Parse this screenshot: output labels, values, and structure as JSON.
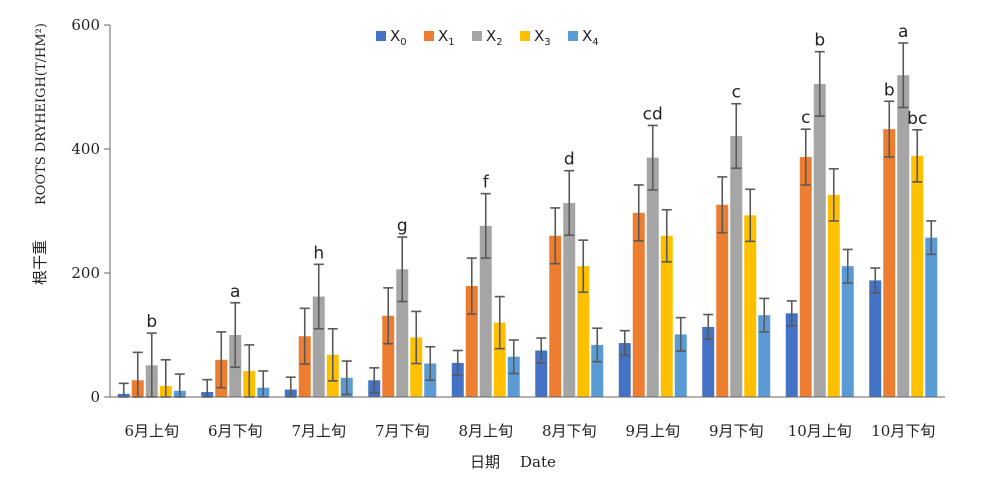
{
  "chart_data": {
    "type": "bar",
    "xlabel_cn": "日期",
    "xlabel_en": "Date",
    "ylabel_cn": "根干重",
    "ylabel_en": "ROOTS DRYHEIGH(T/HM²)",
    "ylim": [
      0,
      600
    ],
    "yticks": [
      0,
      200,
      400,
      600
    ],
    "categories": [
      "6月上旬",
      "6月下旬",
      "7月上旬",
      "7月下旬",
      "8月上旬",
      "8月下旬",
      "9月上旬",
      "9月下旬",
      "10月上旬",
      "10月下旬"
    ],
    "series": [
      {
        "name": "X",
        "sub": "0",
        "color": "#4472c4",
        "values": [
          5,
          8,
          12,
          27,
          55,
          75,
          87,
          113,
          135,
          188
        ],
        "errors": [
          17,
          20,
          20,
          20,
          20,
          20,
          20,
          20,
          20,
          20
        ],
        "sig": [
          "",
          "",
          "",
          "",
          "",
          "",
          "",
          "",
          "",
          ""
        ]
      },
      {
        "name": "X",
        "sub": "1",
        "color": "#ed7d31",
        "values": [
          27,
          60,
          98,
          131,
          179,
          260,
          297,
          310,
          387,
          432
        ],
        "errors": [
          45,
          45,
          45,
          45,
          45,
          45,
          45,
          45,
          45,
          45
        ],
        "sig": [
          "",
          "",
          "",
          "",
          "",
          "",
          "",
          "",
          "c",
          "b"
        ]
      },
      {
        "name": "X",
        "sub": "2",
        "color": "#a5a5a5",
        "values": [
          51,
          100,
          162,
          206,
          276,
          313,
          386,
          421,
          505,
          519
        ],
        "errors": [
          52,
          52,
          52,
          52,
          52,
          52,
          52,
          52,
          52,
          52
        ],
        "sig": [
          "b",
          "a",
          "h",
          "g",
          "f",
          "d",
          "cd",
          "c",
          "b",
          "a"
        ]
      },
      {
        "name": "X",
        "sub": "3",
        "color": "#ffc000",
        "values": [
          18,
          42,
          68,
          96,
          120,
          211,
          260,
          293,
          326,
          389
        ],
        "errors": [
          42,
          42,
          42,
          42,
          42,
          42,
          42,
          42,
          42,
          42
        ],
        "sig": [
          "",
          "",
          "",
          "",
          "",
          "",
          "",
          "",
          "",
          "bc"
        ]
      },
      {
        "name": "X",
        "sub": "4",
        "color": "#5b9bd5",
        "values": [
          10,
          15,
          31,
          54,
          65,
          84,
          101,
          132,
          211,
          257
        ],
        "errors": [
          27,
          27,
          27,
          27,
          27,
          27,
          27,
          27,
          27,
          27
        ],
        "sig": [
          "",
          "",
          "",
          "",
          "",
          "",
          "",
          "",
          "",
          ""
        ]
      }
    ],
    "legend": "top-center",
    "grid": false
  }
}
